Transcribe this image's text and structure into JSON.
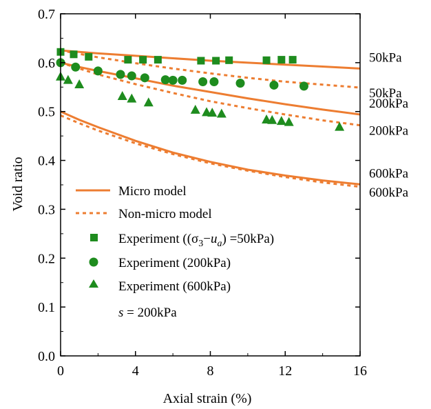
{
  "chart_data": {
    "type": "line",
    "xlabel": "Axial strain (%)",
    "ylabel": "Void ratio",
    "xlim": [
      0,
      16
    ],
    "ylim": [
      0,
      0.7
    ],
    "xticks": [
      0,
      4,
      8,
      12,
      16
    ],
    "xtick_labels": [
      "0",
      "4",
      "8",
      "12",
      "16"
    ],
    "yticks": [
      0.0,
      0.1,
      0.2,
      0.3,
      0.4,
      0.5,
      0.6,
      0.7
    ],
    "ytick_labels": [
      "0.0",
      "0.1",
      "0.2",
      "0.3",
      "0.4",
      "0.5",
      "0.6",
      "0.7"
    ],
    "grid": false,
    "colors": {
      "model": "#ED7D31",
      "experiment": "#1E8C1E"
    },
    "series": [
      {
        "name": "Micro model",
        "style": "solid",
        "curve": "50kPa",
        "end_label": "50kPa",
        "x": [
          0,
          1,
          2,
          4,
          6,
          8,
          10,
          12,
          14,
          16
        ],
        "values": [
          0.625,
          0.622,
          0.619,
          0.614,
          0.609,
          0.604,
          0.6,
          0.596,
          0.592,
          0.588
        ]
      },
      {
        "name": "Non-micro model",
        "style": "dashed",
        "curve": "50kPa",
        "end_label": "50kPa",
        "x": [
          0,
          1,
          2,
          4,
          6,
          8,
          10,
          12,
          14,
          16
        ],
        "values": [
          0.625,
          0.618,
          0.611,
          0.599,
          0.588,
          0.578,
          0.569,
          0.561,
          0.555,
          0.549
        ]
      },
      {
        "name": "Micro model",
        "style": "solid",
        "curve": "200kPa",
        "end_label": "200kPa",
        "x": [
          0,
          1,
          2,
          4,
          6,
          8,
          10,
          12,
          14,
          16
        ],
        "values": [
          0.6,
          0.591,
          0.583,
          0.568,
          0.553,
          0.54,
          0.527,
          0.515,
          0.504,
          0.494
        ]
      },
      {
        "name": "Non-micro model",
        "style": "dashed",
        "curve": "200kPa",
        "end_label": "200kPa",
        "x": [
          0,
          1,
          2,
          4,
          6,
          8,
          10,
          12,
          14,
          16
        ],
        "values": [
          0.6,
          0.588,
          0.576,
          0.556,
          0.538,
          0.521,
          0.507,
          0.494,
          0.482,
          0.472
        ]
      },
      {
        "name": "Micro model",
        "style": "solid",
        "curve": "600kPa",
        "end_label": "600kPa",
        "x": [
          0,
          1,
          2,
          4,
          6,
          8,
          10,
          12,
          14,
          16
        ],
        "values": [
          0.5,
          0.483,
          0.468,
          0.44,
          0.416,
          0.397,
          0.381,
          0.369,
          0.359,
          0.351
        ]
      },
      {
        "name": "Non-micro model",
        "style": "dashed",
        "curve": "600kPa",
        "end_label": "600kPa",
        "x": [
          0,
          1,
          2,
          4,
          6,
          8,
          10,
          12,
          14,
          16
        ],
        "values": [
          0.492,
          0.476,
          0.461,
          0.435,
          0.413,
          0.394,
          0.379,
          0.366,
          0.355,
          0.346
        ]
      },
      {
        "name": "Experiment ((σ3−ua) =50kPa)",
        "marker": "square",
        "x": [
          0,
          0.7,
          1.5,
          3.6,
          4.4,
          5.2,
          7.5,
          8.3,
          9.0,
          11.0,
          11.8,
          12.4
        ],
        "values": [
          0.622,
          0.617,
          0.612,
          0.606,
          0.606,
          0.606,
          0.604,
          0.604,
          0.605,
          0.605,
          0.606,
          0.606
        ]
      },
      {
        "name": "Experiment (200kPa)",
        "marker": "circle",
        "x": [
          0,
          0.8,
          2.0,
          3.2,
          3.8,
          4.5,
          5.6,
          6.0,
          6.5,
          7.6,
          8.2,
          9.6,
          11.4,
          13.0
        ],
        "values": [
          0.6,
          0.591,
          0.583,
          0.576,
          0.573,
          0.569,
          0.565,
          0.564,
          0.564,
          0.561,
          0.561,
          0.558,
          0.554,
          0.552
        ]
      },
      {
        "name": "Experiment (600kPa)",
        "marker": "triangle",
        "x": [
          0,
          0.4,
          1.0,
          3.3,
          3.8,
          4.7,
          7.2,
          7.8,
          8.1,
          8.6,
          11.0,
          11.3,
          11.8,
          12.2,
          14.9
        ],
        "values": [
          0.572,
          0.565,
          0.556,
          0.532,
          0.527,
          0.519,
          0.504,
          0.499,
          0.498,
          0.496,
          0.484,
          0.483,
          0.481,
          0.479,
          0.469
        ]
      }
    ],
    "legend": {
      "placement": "lower-left",
      "entries": [
        {
          "kind": "solid",
          "label_main": "Micro model"
        },
        {
          "kind": "dashed",
          "label_main": "Non-micro model"
        },
        {
          "kind": "square",
          "label_main": "Experiment ((σ",
          "label_sub": "3",
          "label_dash": "−",
          "label_italic": "u",
          "label_sub2": "a",
          "label_tail": ") =50kPa)"
        },
        {
          "kind": "circle",
          "label_main": "Experiment (200kPa)"
        },
        {
          "kind": "triangle",
          "label_main": "Experiment (600kPa)"
        }
      ],
      "suction_var": "s",
      "suction_value": " = 200kPa"
    }
  }
}
